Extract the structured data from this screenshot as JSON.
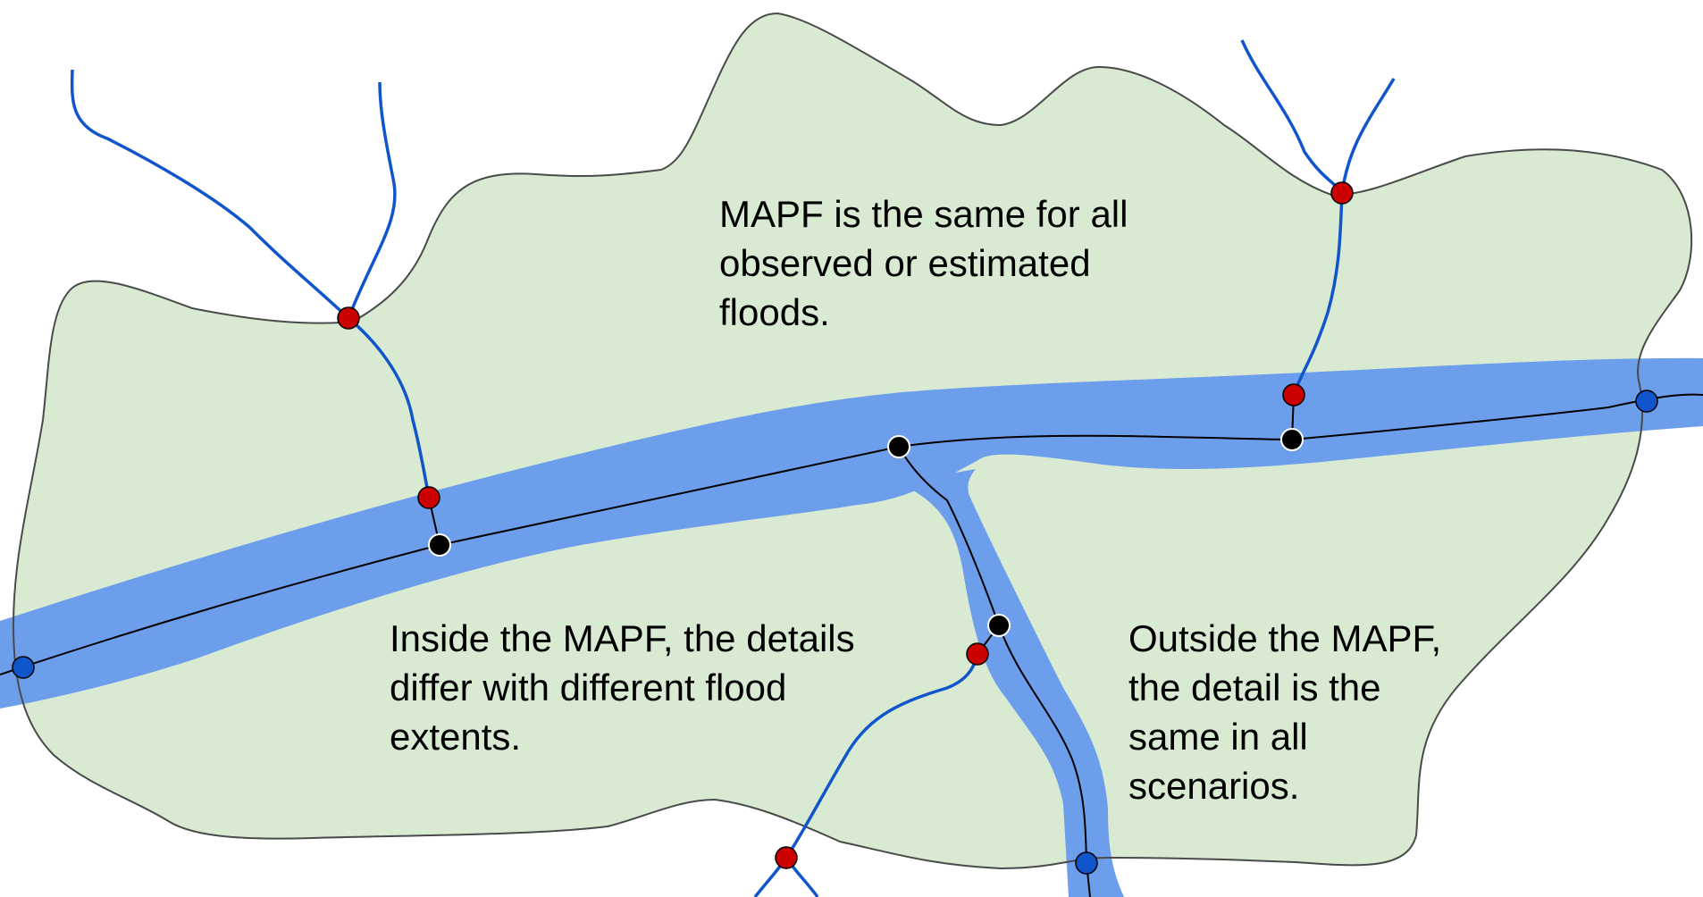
{
  "labels": {
    "top": [
      "MAPF is the same for all",
      "observed or estimated",
      "floods."
    ],
    "inside": [
      "Inside the MAPF, the details",
      "differ with different flood",
      "extents."
    ],
    "outside": [
      "Outside the MAPF,",
      "the detail is the",
      "same in all",
      "scenarios."
    ]
  },
  "colors": {
    "mapf_fill": "#d9ead3",
    "mapf_outline": "#4a4a4a",
    "river_fill": "#6d9eeb",
    "stream_line": "#1155cc",
    "centerline": "#000000",
    "node_red": "#cc0000",
    "node_blue": "#1155cc",
    "node_black": "#000000"
  }
}
